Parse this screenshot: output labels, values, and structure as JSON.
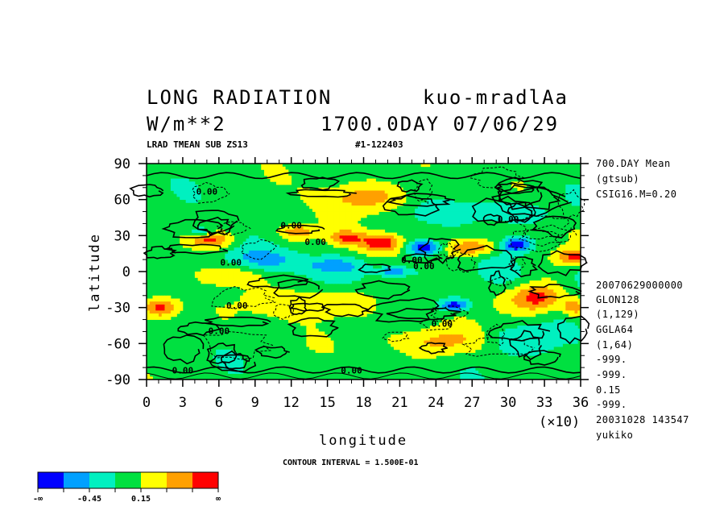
{
  "header": {
    "title_left": "LONG RADIATION",
    "title_right": "kuo-mradlAa",
    "units": "W/m**2",
    "time_stamp": "1700.0DAY 07/06/29",
    "subtitle_left": "LRAD TMEAN SUB ZS13",
    "subtitle_right": "#1-122403"
  },
  "side_info": {
    "top": [
      "700.DAY Mean",
      "(gtsub)",
      "CSIG16.M=0.20"
    ],
    "bottom": [
      "20070629000000",
      "GLON128",
      "(1,129)",
      "GGLA64",
      "(1,64)",
      "-999.",
      "-999.",
      "0.15",
      "-999.",
      "20031028 143547",
      "yukiko"
    ]
  },
  "footer": {
    "contour_interval": "CONTOUR INTERVAL = 1.500E-01"
  },
  "chart_data": {
    "type": "heatmap",
    "xlabel": "longitude",
    "ylabel": "latitude",
    "x_multiplier_label": "(×10)",
    "xlim": [
      0,
      36
    ],
    "ylim": [
      -90,
      90
    ],
    "x_ticks": [
      0,
      3,
      6,
      9,
      12,
      15,
      18,
      21,
      24,
      27,
      30,
      33,
      36
    ],
    "y_ticks": [
      90,
      60,
      30,
      0,
      -30,
      -60,
      -90
    ],
    "contour_labels": [
      {
        "text": "0.00",
        "x": 5,
        "y": 64
      },
      {
        "text": "0.00",
        "x": 12,
        "y": 36
      },
      {
        "text": "0.00",
        "x": 14,
        "y": 22
      },
      {
        "text": "0.00",
        "x": 7,
        "y": 5
      },
      {
        "text": "0.00",
        "x": 23,
        "y": 2
      },
      {
        "text": "0.00",
        "x": 22,
        "y": 7
      },
      {
        "text": "0.00",
        "x": 30,
        "y": 41
      },
      {
        "text": "0.00",
        "x": 7.5,
        "y": -31
      },
      {
        "text": "0.00",
        "x": 6,
        "y": -52
      },
      {
        "text": "0.00",
        "x": 24.5,
        "y": -46
      },
      {
        "text": "0.00",
        "x": 3,
        "y": -85
      },
      {
        "text": "0.00",
        "x": 17,
        "y": -85
      }
    ],
    "colorbar": {
      "colors": [
        "#0000ff",
        "#00a0ff",
        "#00f0c0",
        "#00e040",
        "#ffff00",
        "#ffa000",
        "#ff0000"
      ],
      "labels": [
        "-∞",
        "-0.45",
        "0.15",
        "∞"
      ]
    },
    "anomalies": [
      {
        "x": 1.2,
        "y": -30,
        "v": 1.0,
        "rx": 1.6,
        "ry": 9
      },
      {
        "x": 5.5,
        "y": 27,
        "v": 0.8,
        "rx": 1.8,
        "ry": 7
      },
      {
        "x": 12.5,
        "y": 33,
        "v": 0.7,
        "rx": 1.5,
        "ry": 6
      },
      {
        "x": 16.5,
        "y": 28,
        "v": 0.7,
        "rx": 1.4,
        "ry": 6
      },
      {
        "x": 19.5,
        "y": 24,
        "v": 1.0,
        "rx": 1.8,
        "ry": 8
      },
      {
        "x": 27,
        "y": 20,
        "v": 0.8,
        "rx": 2.0,
        "ry": 7
      },
      {
        "x": 32.4,
        "y": -22,
        "v": 1.0,
        "rx": 2.2,
        "ry": 12
      },
      {
        "x": 35.5,
        "y": 12,
        "v": 0.8,
        "rx": 1.4,
        "ry": 7
      },
      {
        "x": 35.5,
        "y": -30,
        "v": 0.7,
        "rx": 1.0,
        "ry": 7
      },
      {
        "x": 23,
        "y": 20,
        "v": -1.0,
        "rx": 1.4,
        "ry": 6
      },
      {
        "x": 30.7,
        "y": 22,
        "v": -1.0,
        "rx": 1.2,
        "ry": 6
      },
      {
        "x": 25.5,
        "y": -28,
        "v": -0.9,
        "rx": 1.2,
        "ry": 5
      },
      {
        "x": 4.5,
        "y": 33,
        "v": -0.7,
        "rx": 1.0,
        "ry": 4
      },
      {
        "x": 20.5,
        "y": 0,
        "v": -0.8,
        "rx": 1.4,
        "ry": 4
      },
      {
        "x": 14,
        "y": -26,
        "v": 0.55,
        "rx": 4.5,
        "ry": 13
      },
      {
        "x": 18,
        "y": 62,
        "v": 0.55,
        "rx": 4.0,
        "ry": 13
      },
      {
        "x": 24,
        "y": -58,
        "v": 0.55,
        "rx": 4.5,
        "ry": 12
      },
      {
        "x": 7,
        "y": -3,
        "v": 0.5,
        "rx": 3.5,
        "ry": 9
      },
      {
        "x": 28.5,
        "y": 50,
        "v": -0.45,
        "rx": 5.0,
        "ry": 10
      },
      {
        "x": 31.5,
        "y": -58,
        "v": -0.45,
        "rx": 4.0,
        "ry": 13
      },
      {
        "x": 10,
        "y": 10,
        "v": -0.5,
        "rx": 3.5,
        "ry": 10
      },
      {
        "x": 15.5,
        "y": 5,
        "v": -0.45,
        "rx": 2.5,
        "ry": 6
      }
    ]
  }
}
